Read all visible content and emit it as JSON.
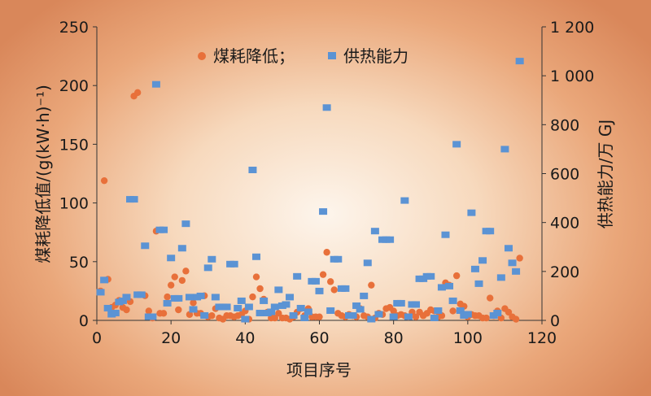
{
  "chart_data": {
    "type": "scatter",
    "xlabel": "项目序号",
    "ylabel_left": "煤耗降低值/(g(kW·h)⁻¹)",
    "ylabel_right": "供热能力/万 GJ",
    "x_ticks": [
      "0",
      "20",
      "40",
      "60",
      "80",
      "100",
      "120"
    ],
    "y_left_ticks": [
      "0",
      "50",
      "100",
      "150",
      "200",
      "250"
    ],
    "y_right_ticks": [
      "0",
      "200",
      "400",
      "600",
      "800",
      "1 000",
      "1 200"
    ],
    "xlim": [
      0,
      120
    ],
    "ylim_left": [
      0,
      250
    ],
    "ylim_right": [
      0,
      1200
    ],
    "legend_position": "top",
    "series": [
      {
        "name": "煤耗降低；",
        "axis": "left",
        "marker": "circle",
        "color": "#e8703a",
        "points": [
          [
            1,
            25
          ],
          [
            2,
            119
          ],
          [
            3,
            35
          ],
          [
            4,
            11
          ],
          [
            5,
            13
          ],
          [
            6,
            17
          ],
          [
            7,
            11
          ],
          [
            8,
            9
          ],
          [
            9,
            16
          ],
          [
            10,
            191
          ],
          [
            11,
            194
          ],
          [
            13,
            21
          ],
          [
            14,
            8
          ],
          [
            15,
            2
          ],
          [
            16,
            76
          ],
          [
            17,
            6
          ],
          [
            18,
            6
          ],
          [
            19,
            20
          ],
          [
            20,
            30
          ],
          [
            21,
            37
          ],
          [
            22,
            9
          ],
          [
            23,
            34
          ],
          [
            24,
            42
          ],
          [
            25,
            5
          ],
          [
            26,
            15
          ],
          [
            27,
            6
          ],
          [
            28,
            6
          ],
          [
            29,
            21
          ],
          [
            30,
            3
          ],
          [
            31,
            4
          ],
          [
            32,
            10
          ],
          [
            33,
            2
          ],
          [
            34,
            1
          ],
          [
            35,
            4
          ],
          [
            36,
            4
          ],
          [
            37,
            3
          ],
          [
            38,
            4
          ],
          [
            39,
            5
          ],
          [
            40,
            8
          ],
          [
            41,
            1
          ],
          [
            42,
            20
          ],
          [
            43,
            37
          ],
          [
            44,
            27
          ],
          [
            45,
            18
          ],
          [
            46,
            7
          ],
          [
            47,
            2
          ],
          [
            48,
            2
          ],
          [
            49,
            6
          ],
          [
            50,
            2
          ],
          [
            51,
            2
          ],
          [
            52,
            1
          ],
          [
            53,
            3
          ],
          [
            54,
            7
          ],
          [
            55,
            10
          ],
          [
            56,
            4
          ],
          [
            57,
            10
          ],
          [
            58,
            3
          ],
          [
            59,
            3
          ],
          [
            60,
            3
          ],
          [
            61,
            39
          ],
          [
            62,
            58
          ],
          [
            63,
            33
          ],
          [
            64,
            26
          ],
          [
            65,
            6
          ],
          [
            66,
            4
          ],
          [
            67,
            3
          ],
          [
            68,
            5
          ],
          [
            69,
            4
          ],
          [
            70,
            3
          ],
          [
            71,
            10
          ],
          [
            72,
            4
          ],
          [
            73,
            3
          ],
          [
            74,
            30
          ],
          [
            75,
            2
          ],
          [
            76,
            6
          ],
          [
            77,
            5
          ],
          [
            78,
            10
          ],
          [
            79,
            11
          ],
          [
            80,
            8
          ],
          [
            81,
            4
          ],
          [
            82,
            5
          ],
          [
            83,
            4
          ],
          [
            84,
            3
          ],
          [
            85,
            7
          ],
          [
            86,
            3
          ],
          [
            87,
            7
          ],
          [
            88,
            4
          ],
          [
            89,
            6
          ],
          [
            90,
            9
          ],
          [
            91,
            8
          ],
          [
            92,
            3
          ],
          [
            93,
            4
          ],
          [
            94,
            32
          ],
          [
            95,
            30
          ],
          [
            96,
            8
          ],
          [
            97,
            38
          ],
          [
            98,
            14
          ],
          [
            99,
            12
          ],
          [
            100,
            3
          ],
          [
            101,
            5
          ],
          [
            102,
            4
          ],
          [
            103,
            4
          ],
          [
            104,
            2
          ],
          [
            105,
            2
          ],
          [
            106,
            19
          ],
          [
            107,
            4
          ],
          [
            108,
            8
          ],
          [
            109,
            2
          ],
          [
            110,
            10
          ],
          [
            111,
            7
          ],
          [
            112,
            3
          ],
          [
            113,
            1
          ],
          [
            114,
            53
          ]
        ]
      },
      {
        "name": "供热能力",
        "axis": "right",
        "marker": "square",
        "color": "#5b93d4",
        "points": [
          [
            1,
            115
          ],
          [
            2,
            165
          ],
          [
            3,
            50
          ],
          [
            4,
            25
          ],
          [
            5,
            30
          ],
          [
            6,
            75
          ],
          [
            7,
            80
          ],
          [
            8,
            95
          ],
          [
            9,
            495
          ],
          [
            10,
            495
          ],
          [
            11,
            105
          ],
          [
            12,
            105
          ],
          [
            13,
            305
          ],
          [
            14,
            15
          ],
          [
            15,
            15
          ],
          [
            16,
            965
          ],
          [
            17,
            370
          ],
          [
            18,
            370
          ],
          [
            19,
            70
          ],
          [
            20,
            255
          ],
          [
            21,
            90
          ],
          [
            22,
            90
          ],
          [
            23,
            295
          ],
          [
            24,
            395
          ],
          [
            25,
            95
          ],
          [
            26,
            45
          ],
          [
            27,
            95
          ],
          [
            28,
            100
          ],
          [
            29,
            20
          ],
          [
            30,
            215
          ],
          [
            31,
            250
          ],
          [
            32,
            95
          ],
          [
            33,
            55
          ],
          [
            34,
            55
          ],
          [
            35,
            55
          ],
          [
            36,
            230
          ],
          [
            37,
            230
          ],
          [
            38,
            50
          ],
          [
            39,
            80
          ],
          [
            40,
            5
          ],
          [
            41,
            55
          ],
          [
            42,
            615
          ],
          [
            43,
            260
          ],
          [
            44,
            30
          ],
          [
            45,
            80
          ],
          [
            46,
            30
          ],
          [
            47,
            35
          ],
          [
            48,
            55
          ],
          [
            49,
            125
          ],
          [
            50,
            60
          ],
          [
            51,
            65
          ],
          [
            52,
            95
          ],
          [
            53,
            20
          ],
          [
            54,
            180
          ],
          [
            55,
            50
          ],
          [
            56,
            10
          ],
          [
            57,
            35
          ],
          [
            58,
            160
          ],
          [
            59,
            160
          ],
          [
            60,
            120
          ],
          [
            61,
            445
          ],
          [
            62,
            870
          ],
          [
            63,
            40
          ],
          [
            64,
            250
          ],
          [
            65,
            250
          ],
          [
            66,
            130
          ],
          [
            67,
            130
          ],
          [
            68,
            20
          ],
          [
            69,
            20
          ],
          [
            70,
            60
          ],
          [
            71,
            45
          ],
          [
            72,
            100
          ],
          [
            73,
            235
          ],
          [
            74,
            5
          ],
          [
            75,
            365
          ],
          [
            76,
            25
          ],
          [
            77,
            330
          ],
          [
            78,
            330
          ],
          [
            79,
            330
          ],
          [
            80,
            15
          ],
          [
            81,
            70
          ],
          [
            82,
            70
          ],
          [
            83,
            490
          ],
          [
            84,
            15
          ],
          [
            85,
            65
          ],
          [
            86,
            65
          ],
          [
            87,
            170
          ],
          [
            88,
            170
          ],
          [
            89,
            180
          ],
          [
            90,
            180
          ],
          [
            91,
            10
          ],
          [
            92,
            40
          ],
          [
            93,
            135
          ],
          [
            94,
            350
          ],
          [
            95,
            140
          ],
          [
            96,
            80
          ],
          [
            97,
            720
          ],
          [
            98,
            40
          ],
          [
            99,
            20
          ],
          [
            100,
            25
          ],
          [
            101,
            440
          ],
          [
            102,
            210
          ],
          [
            103,
            150
          ],
          [
            104,
            245
          ],
          [
            105,
            365
          ],
          [
            106,
            365
          ],
          [
            107,
            20
          ],
          [
            108,
            30
          ],
          [
            109,
            175
          ],
          [
            110,
            700
          ],
          [
            111,
            295
          ],
          [
            112,
            235
          ],
          [
            113,
            200
          ],
          [
            114,
            1060
          ]
        ]
      }
    ]
  }
}
